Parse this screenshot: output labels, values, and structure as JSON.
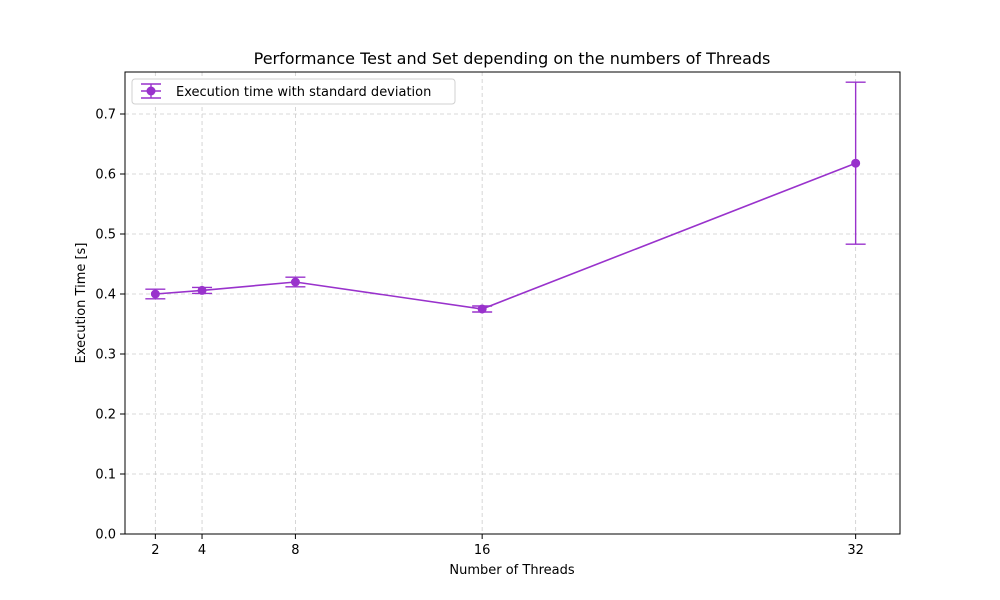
{
  "chart_data": {
    "type": "line",
    "title": "Performance Test and Set depending on the numbers of Threads",
    "xlabel": "Number of Threads",
    "ylabel": "Execution Time [s]",
    "xlim": [
      0.7,
      33.9
    ],
    "ylim": [
      0.0,
      0.77
    ],
    "xticks": [
      2,
      4,
      8,
      16,
      32
    ],
    "xtick_labels": [
      "2",
      "4",
      "8",
      "16",
      "32"
    ],
    "yticks": [
      0.0,
      0.1,
      0.2,
      0.3,
      0.4,
      0.5,
      0.6,
      0.7
    ],
    "ytick_labels": [
      "0.0",
      "0.1",
      "0.2",
      "0.3",
      "0.4",
      "0.5",
      "0.6",
      "0.7"
    ],
    "grid": true,
    "legend_position": "top-left",
    "series": [
      {
        "name": "Execution time with standard deviation",
        "color": "#9932CC",
        "x": [
          2,
          4,
          8,
          16,
          32
        ],
        "y": [
          0.4,
          0.406,
          0.42,
          0.375,
          0.618
        ],
        "yerr": [
          0.008,
          0.005,
          0.008,
          0.005,
          0.135
        ]
      }
    ]
  }
}
